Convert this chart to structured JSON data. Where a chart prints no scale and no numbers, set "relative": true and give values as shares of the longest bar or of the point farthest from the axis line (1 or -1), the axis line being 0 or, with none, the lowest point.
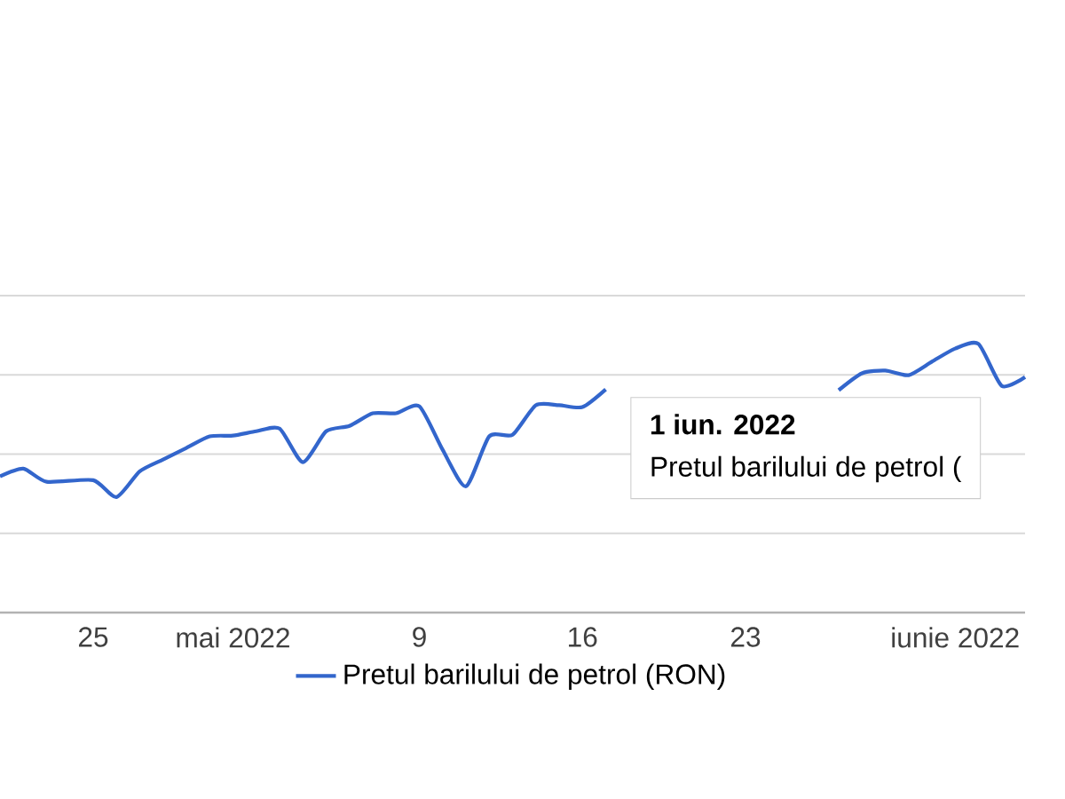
{
  "chart_data": {
    "type": "line",
    "relative": true,
    "x": [
      "2022-04-21",
      "2022-04-22",
      "2022-04-23",
      "2022-04-25",
      "2022-04-26",
      "2022-04-27",
      "2022-04-28",
      "2022-04-29",
      "2022-04-30",
      "2022-05-01",
      "2022-05-02",
      "2022-05-03",
      "2022-05-04",
      "2022-05-05",
      "2022-05-06",
      "2022-05-07",
      "2022-05-08",
      "2022-05-09",
      "2022-05-10",
      "2022-05-11",
      "2022-05-12",
      "2022-05-13",
      "2022-05-14",
      "2022-05-15",
      "2022-05-16",
      "2022-05-17",
      "2022-05-18",
      "2022-05-19",
      "2022-05-20",
      "2022-05-21",
      "2022-05-22",
      "2022-05-23",
      "2022-05-24",
      "2022-05-25",
      "2022-05-26",
      "2022-05-27",
      "2022-05-28",
      "2022-05-29",
      "2022-05-30",
      "2022-05-31",
      "2022-06-01",
      "2022-06-02",
      "2022-06-03",
      "2022-06-04"
    ],
    "series": [
      {
        "name": "Pretul barilului de petrol (RON)",
        "color": "#3366cc",
        "values": [
          0.507,
          0.536,
          0.487,
          0.493,
          0.43,
          0.526,
          0.57,
          0.613,
          0.656,
          0.659,
          0.675,
          0.685,
          0.56,
          0.675,
          0.695,
          0.742,
          0.742,
          0.768,
          0.606,
          0.47,
          0.656,
          0.662,
          0.772,
          0.772,
          0.765,
          0.831,
          null,
          null,
          null,
          null,
          null,
          null,
          null,
          null,
          null,
          0.828,
          0.891,
          0.901,
          0.884,
          0.934,
          0.983,
          1,
          0.844,
          0.877
        ]
      }
    ],
    "xlim": [
      "2022-04-21",
      "2022-06-04"
    ],
    "xticks": [
      {
        "value": "2022-04-25",
        "label": "25"
      },
      {
        "value": "2022-05-01",
        "label": "mai 2022"
      },
      {
        "value": "2022-05-09",
        "label": "9"
      },
      {
        "value": "2022-05-16",
        "label": "16"
      },
      {
        "value": "2022-05-23",
        "label": "23"
      },
      {
        "value": "2022-06-01",
        "label": "iunie 2022"
      }
    ],
    "grid": "y",
    "legend": "bottom",
    "marker": "none",
    "line_style": "solid",
    "annotations": [
      "1 iun. 2022",
      "Pretul barilului de petrol ("
    ]
  }
}
